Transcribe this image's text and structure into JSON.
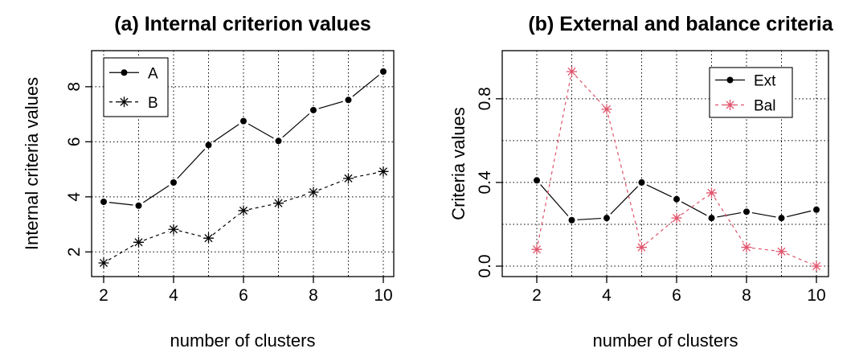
{
  "chart_data": [
    {
      "type": "line",
      "title": "(a) Internal criterion values",
      "xlabel": "number of clusters",
      "ylabel": "Internal criteria values",
      "x": [
        2,
        3,
        4,
        5,
        6,
        7,
        8,
        9,
        10
      ],
      "xticks": [
        "2",
        "4",
        "6",
        "8",
        "10"
      ],
      "yticks": [
        "2",
        "4",
        "6",
        "8"
      ],
      "xlim": [
        2,
        10
      ],
      "ylim": [
        1.6,
        8.55
      ],
      "grid": true,
      "legend_position": "top-left",
      "series": [
        {
          "name": "A",
          "marker": "dot",
          "line": "solid",
          "color": "#000000",
          "values": [
            3.82,
            3.68,
            4.52,
            5.88,
            6.75,
            6.03,
            7.15,
            7.52,
            8.55
          ]
        },
        {
          "name": "B",
          "marker": "star",
          "line": "dashed",
          "color": "#000000",
          "values": [
            1.6,
            2.35,
            2.82,
            2.5,
            3.5,
            3.77,
            4.17,
            4.67,
            4.92
          ]
        }
      ]
    },
    {
      "type": "line",
      "title": "(b) External and balance criteria",
      "xlabel": "number of clusters",
      "ylabel": "Criteria values",
      "x": [
        2,
        3,
        4,
        5,
        6,
        7,
        8,
        9,
        10
      ],
      "xticks": [
        "2",
        "4",
        "6",
        "8",
        "10"
      ],
      "yticks": [
        "0.0",
        "0.4",
        "0.8"
      ],
      "xlim": [
        2,
        10
      ],
      "ylim": [
        0,
        0.93
      ],
      "grid": true,
      "legend_position": "top-right",
      "series": [
        {
          "name": "Ext",
          "marker": "dot",
          "line": "solid",
          "color": "#000000",
          "values": [
            0.41,
            0.22,
            0.23,
            0.4,
            0.32,
            0.23,
            0.26,
            0.23,
            0.27
          ]
        },
        {
          "name": "Bal",
          "marker": "star",
          "line": "dashed",
          "color": "#DF536B",
          "values": [
            0.08,
            0.93,
            0.75,
            0.09,
            0.23,
            0.35,
            0.09,
            0.07,
            0.0
          ]
        }
      ]
    }
  ]
}
